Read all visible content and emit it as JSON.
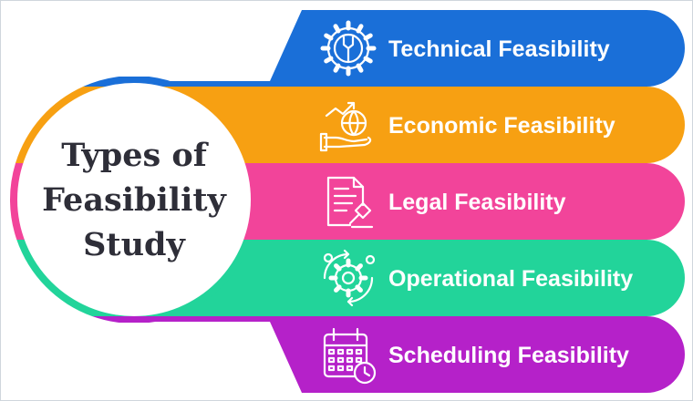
{
  "title": {
    "lines": [
      "Types of",
      "Feasibility",
      "Study"
    ]
  },
  "items": [
    {
      "label": "Technical Feasibility",
      "icon": "gear-wrench-icon",
      "color": "#1a6fd8"
    },
    {
      "label": "Economic Feasibility",
      "icon": "hand-globe-growth-icon",
      "color": "#f7a012"
    },
    {
      "label": "Legal Feasibility",
      "icon": "document-gavel-icon",
      "color": "#f2449a"
    },
    {
      "label": "Operational Feasibility",
      "icon": "gear-cycle-icon",
      "color": "#22d49a"
    },
    {
      "label": "Scheduling Feasibility",
      "icon": "calendar-clock-icon",
      "color": "#b521c9"
    }
  ]
}
